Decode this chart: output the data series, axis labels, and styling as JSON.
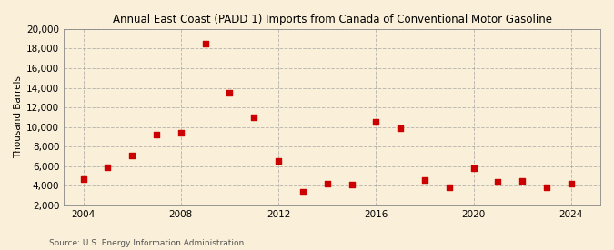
{
  "title": "Annual East Coast (PADD 1) Imports from Canada of Conventional Motor Gasoline",
  "ylabel": "Thousand Barrels",
  "source": "Source: U.S. Energy Information Administration",
  "background_color": "#faefd8",
  "plot_background_color": "#faefd8",
  "marker_color": "#cc0000",
  "marker_size": 18,
  "years_plot": [
    2004,
    2005,
    2006,
    2007,
    2008,
    2009,
    2010,
    2011,
    2012,
    2013,
    2014,
    2015,
    2016,
    2017,
    2018,
    2019,
    2020,
    2021,
    2022,
    2023,
    2024
  ],
  "values_plot": [
    4700,
    5900,
    7100,
    9200,
    9400,
    18500,
    13500,
    11000,
    6500,
    3400,
    4200,
    4100,
    10500,
    9900,
    4600,
    3800,
    5800,
    4400,
    4500,
    3800,
    4200
  ],
  "ylim": [
    2000,
    20000
  ],
  "yticks": [
    2000,
    4000,
    6000,
    8000,
    10000,
    12000,
    14000,
    16000,
    18000,
    20000
  ],
  "xlim": [
    2003.2,
    2025.2
  ],
  "xticks": [
    2004,
    2008,
    2012,
    2016,
    2020,
    2024
  ],
  "grid_color": "#999999",
  "grid_style": "--",
  "grid_alpha": 0.6,
  "title_fontsize": 8.5,
  "axis_fontsize": 7.5,
  "source_fontsize": 6.5
}
